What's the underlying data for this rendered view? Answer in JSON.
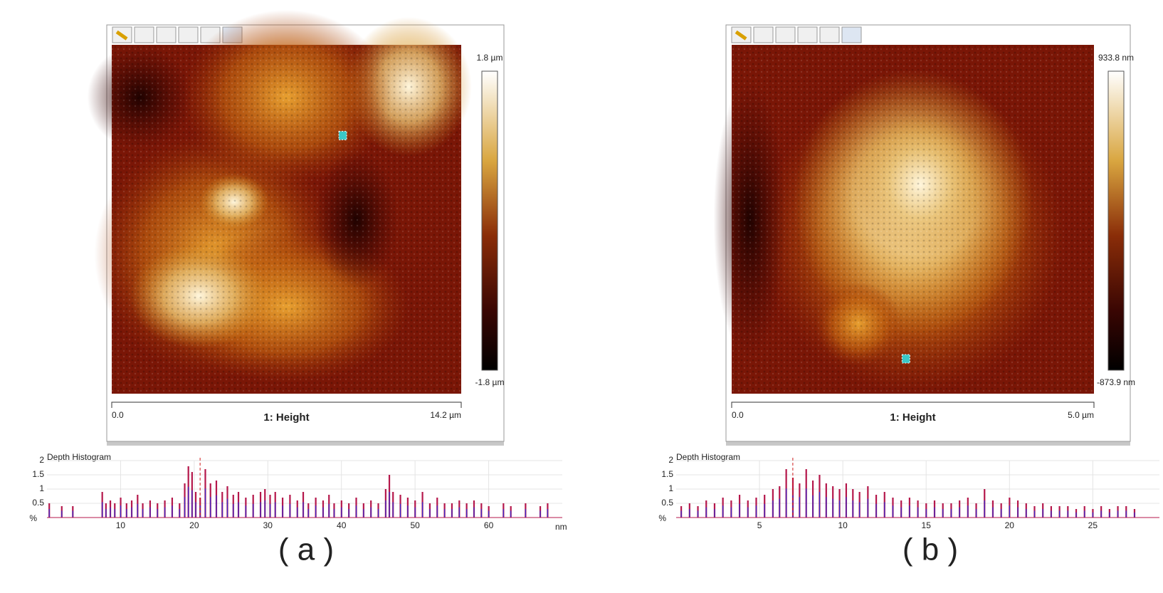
{
  "panels": [
    {
      "colorbar": {
        "max_label": "1.8 µm",
        "min_label": "-1.8 µm"
      },
      "scale": {
        "start": "0.0",
        "title": "1: Height",
        "end": "14.2 µm"
      },
      "histogram": {
        "type": "bar",
        "title": "Depth Histogram",
        "y_unit": "%",
        "x_unit": "nm",
        "color": "#b5174b",
        "x": [
          0.3,
          2,
          3.5,
          7.5,
          8,
          8.6,
          9.2,
          10,
          10.8,
          11.5,
          12.3,
          13,
          14,
          15,
          16,
          17,
          18,
          18.7,
          19.2,
          19.7,
          20.2,
          20.8,
          21.5,
          22.2,
          23,
          23.8,
          24.5,
          25.3,
          26,
          27,
          28,
          29,
          29.6,
          30.3,
          31,
          32,
          33,
          34,
          34.8,
          35.5,
          36.5,
          37.5,
          38.3,
          39,
          40,
          41,
          42,
          43,
          44,
          45,
          46,
          46.5,
          47,
          48,
          49,
          50,
          51,
          52,
          53,
          54,
          55,
          56,
          57,
          58,
          59,
          60,
          62,
          63,
          65,
          67,
          68
        ],
        "values": [
          0.5,
          0.4,
          0.4,
          0.9,
          0.5,
          0.6,
          0.5,
          0.7,
          0.5,
          0.6,
          0.8,
          0.5,
          0.6,
          0.5,
          0.6,
          0.7,
          0.5,
          1.2,
          1.8,
          1.6,
          0.9,
          0.7,
          1.7,
          1.2,
          1.3,
          0.9,
          1.1,
          0.8,
          0.9,
          0.7,
          0.8,
          0.9,
          1.0,
          0.8,
          0.9,
          0.7,
          0.8,
          0.6,
          0.9,
          0.5,
          0.7,
          0.6,
          0.8,
          0.5,
          0.6,
          0.5,
          0.7,
          0.5,
          0.6,
          0.5,
          1.0,
          1.5,
          0.9,
          0.8,
          0.7,
          0.6,
          0.9,
          0.5,
          0.7,
          0.5,
          0.5,
          0.6,
          0.5,
          0.6,
          0.5,
          0.4,
          0.5,
          0.4,
          0.5,
          0.4,
          0.5
        ],
        "marker_x": 20.8,
        "xlim": [
          0,
          70
        ],
        "ylim": [
          0,
          2
        ],
        "xticks": [
          10,
          20,
          30,
          40,
          50,
          60
        ],
        "yticks": [
          0.5,
          1,
          1.5,
          2
        ],
        "grid": true
      },
      "caption": "( a )"
    },
    {
      "colorbar": {
        "max_label": "933.8 nm",
        "min_label": "-873.9 nm"
      },
      "scale": {
        "start": "0.0",
        "title": "1: Height",
        "end": "5.0 µm"
      },
      "histogram": {
        "type": "bar",
        "title": "Depth Histogram",
        "y_unit": "%",
        "color": "#b5174b",
        "x": [
          0.3,
          0.8,
          1.3,
          1.8,
          2.3,
          2.8,
          3.3,
          3.8,
          4.3,
          4.8,
          5.3,
          5.8,
          6.2,
          6.6,
          7,
          7.4,
          7.8,
          8.2,
          8.6,
          9,
          9.4,
          9.8,
          10.2,
          10.6,
          11,
          11.5,
          12,
          12.5,
          13,
          13.5,
          14,
          14.5,
          15,
          15.5,
          16,
          16.5,
          17,
          17.5,
          18,
          18.5,
          19,
          19.5,
          20,
          20.5,
          21,
          21.5,
          22,
          22.5,
          23,
          23.5,
          24,
          24.5,
          25,
          25.5,
          26,
          26.5,
          27,
          27.5
        ],
        "values": [
          0.4,
          0.5,
          0.4,
          0.6,
          0.5,
          0.7,
          0.6,
          0.8,
          0.6,
          0.7,
          0.8,
          1.0,
          1.1,
          1.7,
          1.4,
          1.2,
          1.7,
          1.3,
          1.5,
          1.2,
          1.1,
          1.0,
          1.2,
          1.0,
          0.9,
          1.1,
          0.8,
          0.9,
          0.7,
          0.6,
          0.7,
          0.6,
          0.5,
          0.6,
          0.5,
          0.5,
          0.6,
          0.7,
          0.5,
          1.0,
          0.6,
          0.5,
          0.7,
          0.6,
          0.5,
          0.4,
          0.5,
          0.4,
          0.4,
          0.4,
          0.3,
          0.4,
          0.3,
          0.4,
          0.3,
          0.4,
          0.4,
          0.3
        ],
        "marker_x": 7,
        "xlim": [
          0,
          29
        ],
        "ylim": [
          0,
          2
        ],
        "xticks": [
          5,
          10,
          15,
          20,
          25
        ],
        "yticks": [
          0.5,
          1,
          1.5,
          2
        ],
        "grid": true
      },
      "caption": "( b )"
    }
  ]
}
